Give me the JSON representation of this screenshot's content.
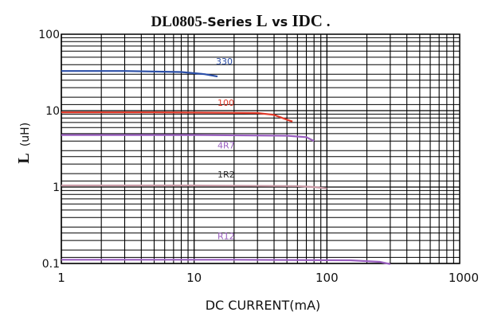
{
  "chart_data": {
    "type": "line",
    "title": "DL0805-Series L vs IDC .",
    "xlabel": "DC CURRENT(mA)",
    "ylabel": "L",
    "ylabel_unit": "(uH)",
    "x_scale": "log",
    "y_scale": "log",
    "xlim": [
      1,
      1000
    ],
    "ylim": [
      0.1,
      100
    ],
    "x_ticks": [
      "1",
      "10",
      "100",
      "1000"
    ],
    "y_ticks": [
      "0.1",
      "1",
      "10",
      "100"
    ],
    "grid": true,
    "series": [
      {
        "name": "330",
        "color": "#2b4fa8",
        "x": [
          1,
          3,
          8,
          12,
          15
        ],
        "y": [
          33,
          33,
          32,
          30,
          28
        ]
      },
      {
        "name": "100",
        "color": "#e03a2a",
        "x": [
          1,
          5,
          30,
          40,
          50,
          55
        ],
        "y": [
          9.5,
          9.5,
          9.3,
          8.8,
          7.6,
          7.2
        ]
      },
      {
        "name": "4R7",
        "color": "#9a5fc0",
        "x": [
          1,
          10,
          50,
          70,
          80
        ],
        "y": [
          4.8,
          4.8,
          4.7,
          4.5,
          4.0
        ]
      },
      {
        "name": "1R2",
        "color": "#c99aa6",
        "x": [
          1,
          10,
          60,
          80,
          100
        ],
        "y": [
          1.05,
          1.05,
          1.03,
          1.0,
          0.96
        ]
      },
      {
        "name": "R12",
        "color": "#9a5fc0",
        "x": [
          1,
          20,
          150,
          250,
          300
        ],
        "y": [
          0.112,
          0.112,
          0.11,
          0.105,
          0.098
        ]
      }
    ]
  }
}
